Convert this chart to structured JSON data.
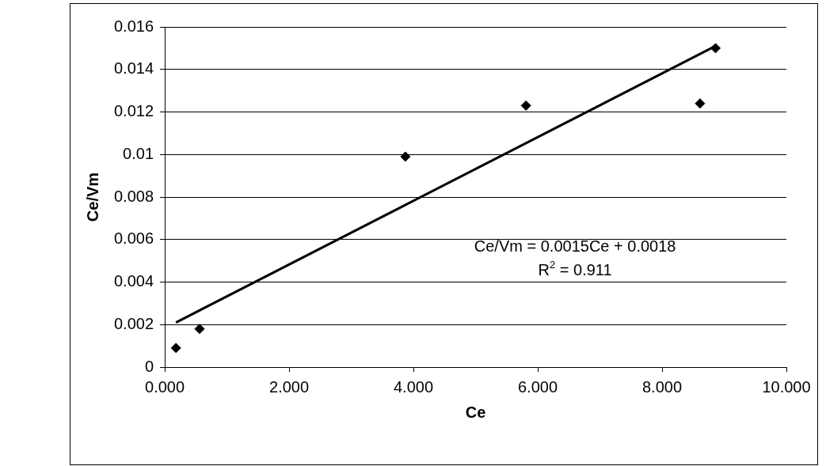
{
  "chart_data": {
    "type": "scatter",
    "xlabel": "Ce",
    "ylabel": "Ce/Vm",
    "series": [
      {
        "color": "#000000",
        "x": [
          0.18,
          0.56,
          3.87,
          5.81,
          8.61,
          8.86
        ],
        "values": [
          0.0009,
          0.0018,
          0.0099,
          0.0123,
          0.0124,
          0.015
        ],
        "marker": "diamond"
      },
      {
        "type": "line",
        "color": "#000000",
        "x": [
          0.18,
          8.86
        ],
        "values": [
          0.0021,
          0.0151
        ],
        "marker": "none",
        "line_style": "solid"
      }
    ],
    "xlim": [
      0,
      10
    ],
    "xticks": [
      {
        "value": 0,
        "label": "0.000"
      },
      {
        "value": 2,
        "label": "2.000"
      },
      {
        "value": 4,
        "label": "4.000"
      },
      {
        "value": 6,
        "label": "6.000"
      },
      {
        "value": 8,
        "label": "8.000"
      },
      {
        "value": 10,
        "label": "10.000"
      }
    ],
    "ylim": [
      0,
      0.016
    ],
    "yticks": [
      0,
      0.002,
      0.004,
      0.006,
      0.008,
      0.01,
      0.012,
      0.014,
      0.016
    ],
    "grid": "y",
    "legend": false,
    "annotations": [
      "Ce/Vm = 0.0015Ce + 0.0018",
      "R$^{2}$ = 0.911"
    ]
  }
}
